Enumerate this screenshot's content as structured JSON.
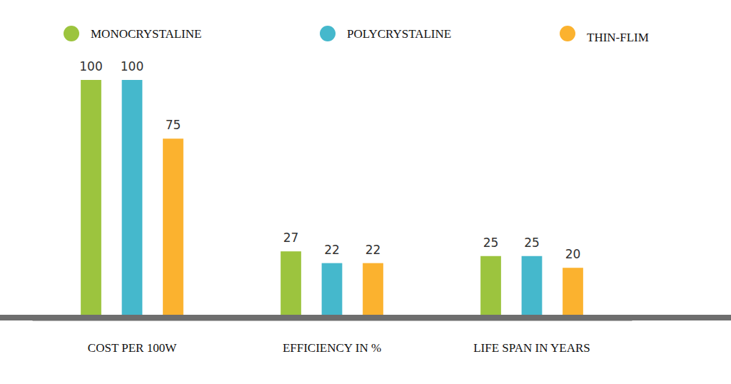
{
  "chart_data": {
    "type": "bar",
    "categories": [
      "COST PER 100W",
      "EFFICIENCY IN %",
      "LIFE SPAN IN YEARS"
    ],
    "series": [
      {
        "name": "MONOCRYSTALINE",
        "color": "#9cc43e",
        "values": [
          100,
          27,
          25
        ]
      },
      {
        "name": "POLYCRYSTALINE",
        "color": "#45b8cc",
        "values": [
          100,
          22,
          25
        ]
      },
      {
        "name": "THIN-FLIM",
        "color": "#fbb22f",
        "values": [
          75,
          22,
          20
        ]
      }
    ],
    "ylim": [
      0,
      100
    ],
    "data_labels": true,
    "tick_labels": "x",
    "legend": "top",
    "grid": false
  }
}
